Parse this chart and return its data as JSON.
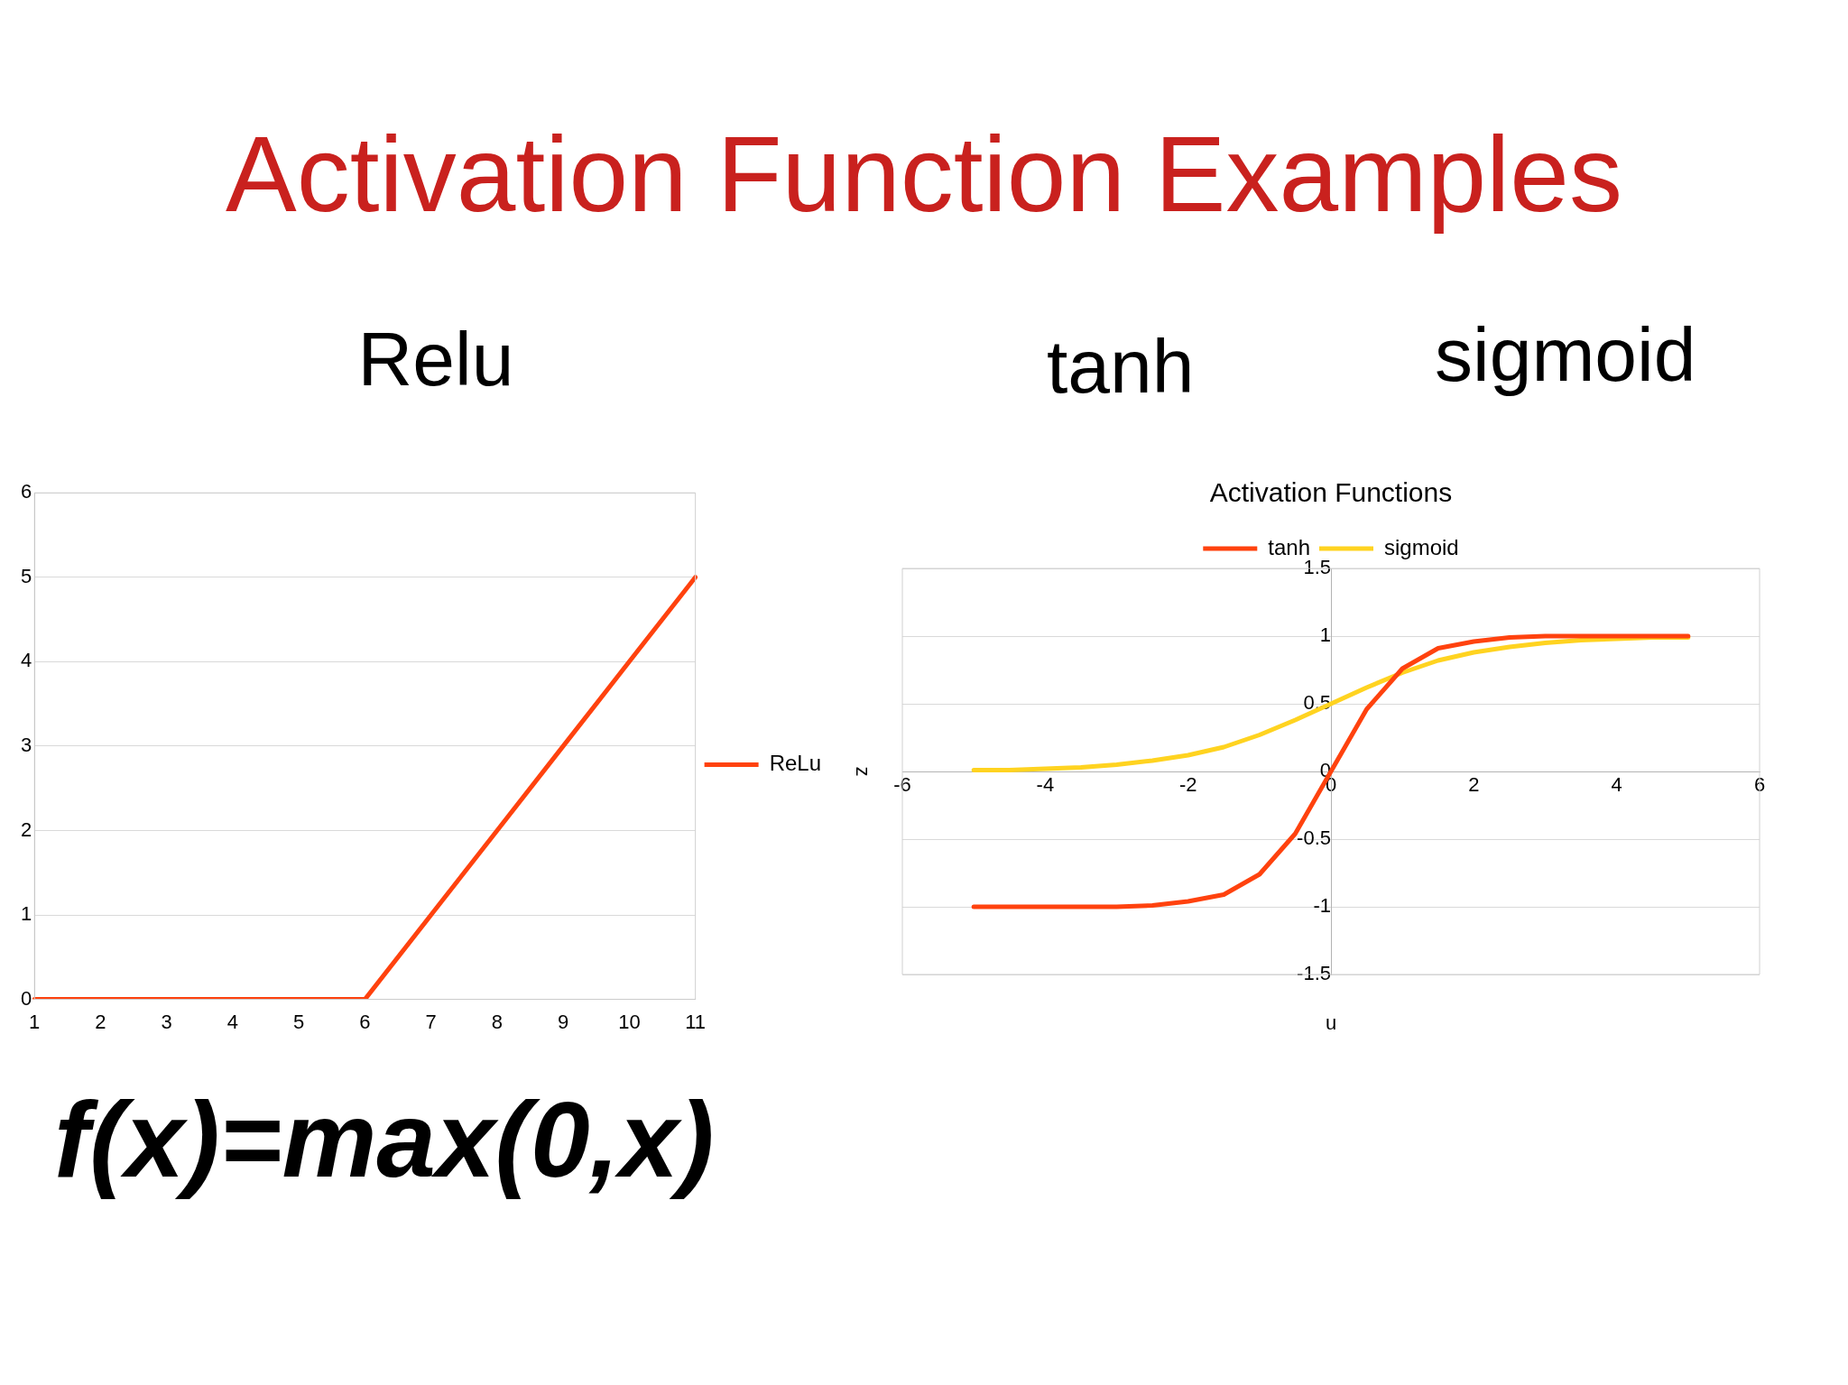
{
  "chart_data": [
    {
      "type": "line",
      "title": "Relu",
      "annotations": [
        "Activation Function Examples",
        "f(x)=max(0,x)"
      ],
      "categories": [
        "1",
        "2",
        "3",
        "4",
        "5",
        "6",
        "7",
        "8",
        "9",
        "10",
        "11"
      ],
      "series": [
        {
          "name": "ReLu",
          "color": "#ff420e",
          "values": [
            0,
            0,
            0,
            0,
            0,
            0,
            1,
            2,
            3,
            4,
            5
          ]
        }
      ],
      "ylim": [
        0,
        6
      ],
      "yticks": [
        0,
        1,
        2,
        3,
        4,
        5,
        6
      ],
      "grid": "y",
      "legend": "right"
    },
    {
      "type": "line",
      "title": "Activation Functions",
      "xlabel": "u",
      "ylabel": "z",
      "annotations": [
        "tanh",
        "sigmoid"
      ],
      "x": [
        -5,
        -4.5,
        -4,
        -3.5,
        -3,
        -2.5,
        -2,
        -1.5,
        -1,
        -0.5,
        0,
        0.5,
        1,
        1.5,
        2,
        2.5,
        3,
        3.5,
        4,
        4.5,
        5
      ],
      "series": [
        {
          "name": "tanh",
          "color": "#ff420e",
          "values": [
            -1,
            -1,
            -1,
            -1,
            -1,
            -0.99,
            -0.96,
            -0.91,
            -0.76,
            -0.46,
            0,
            0.46,
            0.76,
            0.91,
            0.96,
            0.99,
            1,
            1,
            1,
            1,
            1
          ]
        },
        {
          "name": "sigmoid",
          "color": "#ffd320",
          "values": [
            0.01,
            0.01,
            0.02,
            0.03,
            0.05,
            0.08,
            0.12,
            0.18,
            0.27,
            0.38,
            0.5,
            0.62,
            0.73,
            0.82,
            0.88,
            0.92,
            0.95,
            0.97,
            0.98,
            0.99,
            0.99
          ]
        }
      ],
      "xlim": [
        -6,
        6
      ],
      "xticks": [
        -6,
        -4,
        -2,
        0,
        2,
        4,
        6
      ],
      "ylim": [
        -1.5,
        1.5
      ],
      "yticks": [
        -1.5,
        -1,
        -0.5,
        0,
        0.5,
        1,
        1.5
      ],
      "grid": "y",
      "legend": "top"
    }
  ]
}
